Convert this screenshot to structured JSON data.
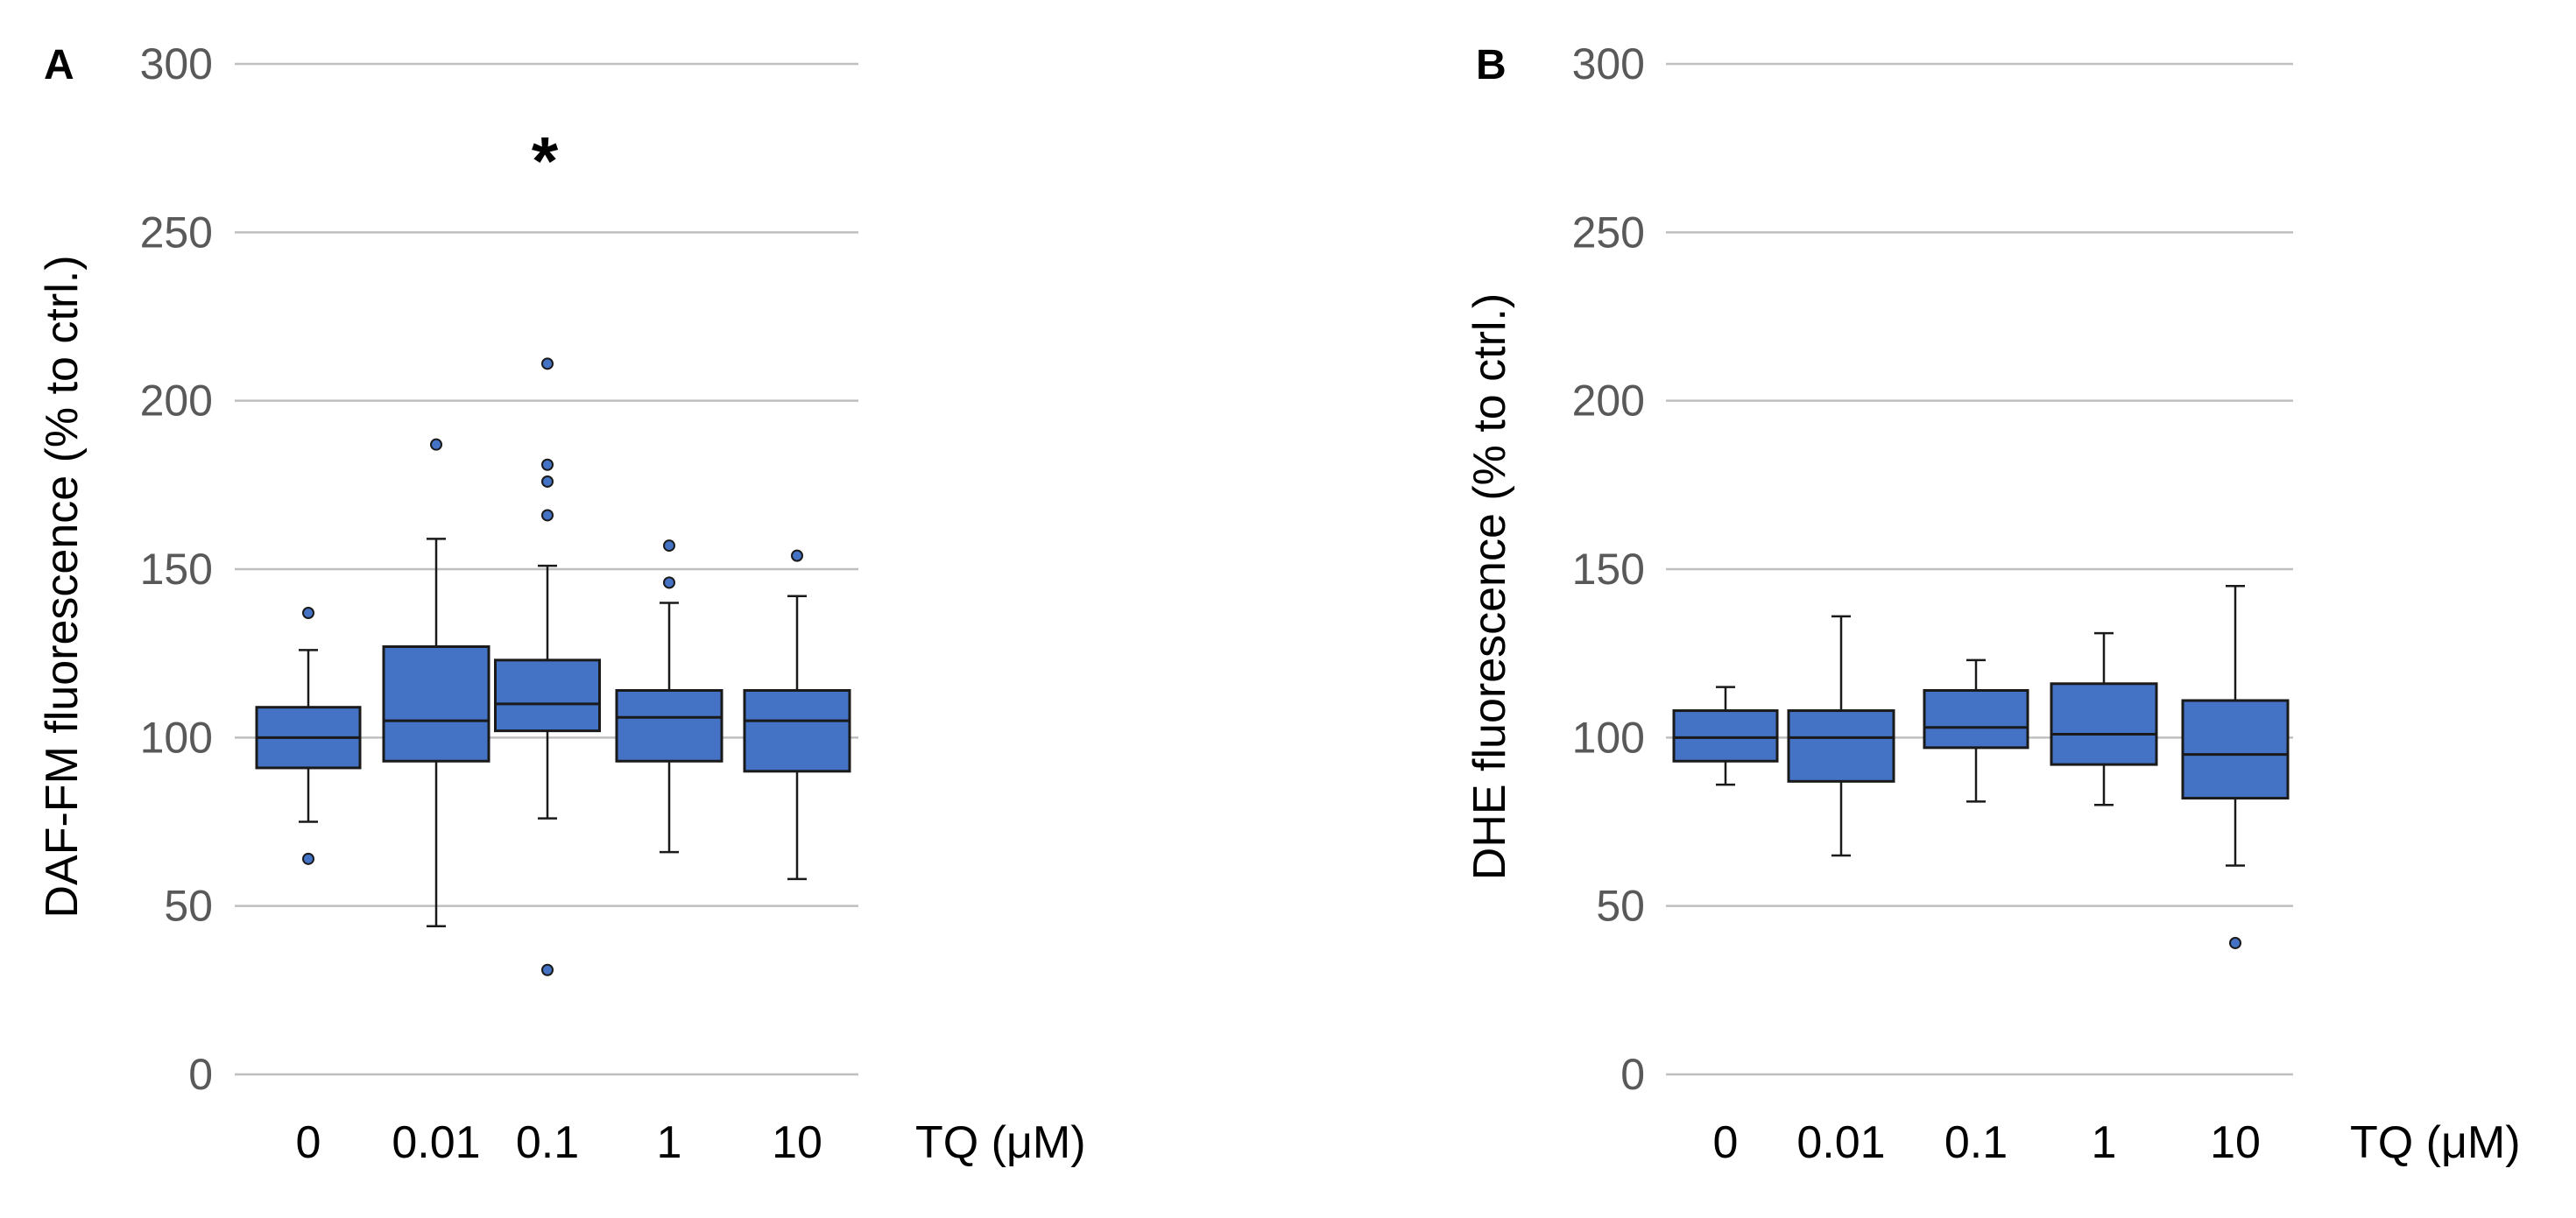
{
  "chart_data": [
    {
      "type": "box",
      "panel": "A",
      "ylabel": "DAF-FM fluorescence (% to ctrl.)",
      "xlabel": "TQ (μM)",
      "ylim": [
        0,
        300
      ],
      "yticks": [
        0,
        50,
        100,
        150,
        200,
        250,
        300
      ],
      "grid": true,
      "fill_color": "#4472c4",
      "categories": [
        "0",
        "0.01",
        "0.1",
        "1",
        "10"
      ],
      "boxes": [
        {
          "category": "0",
          "whisker_low": 75,
          "q1": 91,
          "median": 100,
          "q3": 109,
          "whisker_high": 126,
          "outliers": [
            137,
            64
          ]
        },
        {
          "category": "0.01",
          "whisker_low": 44,
          "q1": 93,
          "median": 105,
          "q3": 127,
          "whisker_high": 159,
          "outliers": [
            187
          ]
        },
        {
          "category": "0.1",
          "whisker_low": 76,
          "q1": 102,
          "median": 110,
          "q3": 123,
          "whisker_high": 151,
          "outliers": [
            211,
            181,
            176,
            166,
            31
          ]
        },
        {
          "category": "1",
          "whisker_low": 66,
          "q1": 93,
          "median": 106,
          "q3": 114,
          "whisker_high": 140,
          "outliers": [
            157,
            146
          ]
        },
        {
          "category": "10",
          "whisker_low": 58,
          "q1": 90,
          "median": 105,
          "q3": 114,
          "whisker_high": 142,
          "outliers": [
            154
          ]
        }
      ],
      "annotations": [
        {
          "text": "*",
          "category": "0.1",
          "y": 272
        }
      ]
    },
    {
      "type": "box",
      "panel": "B",
      "ylabel": "DHE fluorescence (% to ctrl.)",
      "xlabel": "TQ (μM)",
      "ylim": [
        0,
        300
      ],
      "yticks": [
        0,
        50,
        100,
        150,
        200,
        250,
        300
      ],
      "grid": true,
      "fill_color": "#4472c4",
      "categories": [
        "0",
        "0.01",
        "0.1",
        "1",
        "10"
      ],
      "boxes": [
        {
          "category": "0",
          "whisker_low": 86,
          "q1": 93,
          "median": 100,
          "q3": 108,
          "whisker_high": 115,
          "outliers": []
        },
        {
          "category": "0.01",
          "whisker_low": 65,
          "q1": 87,
          "median": 100,
          "q3": 108,
          "whisker_high": 136,
          "outliers": []
        },
        {
          "category": "0.1",
          "whisker_low": 81,
          "q1": 97,
          "median": 103,
          "q3": 114,
          "whisker_high": 123,
          "outliers": []
        },
        {
          "category": "1",
          "whisker_low": 80,
          "q1": 92,
          "median": 101,
          "q3": 116,
          "whisker_high": 131,
          "outliers": []
        },
        {
          "category": "10",
          "whisker_low": 62,
          "q1": 82,
          "median": 95,
          "q3": 111,
          "whisker_high": 145,
          "outliers": [
            39
          ]
        }
      ],
      "annotations": []
    }
  ]
}
